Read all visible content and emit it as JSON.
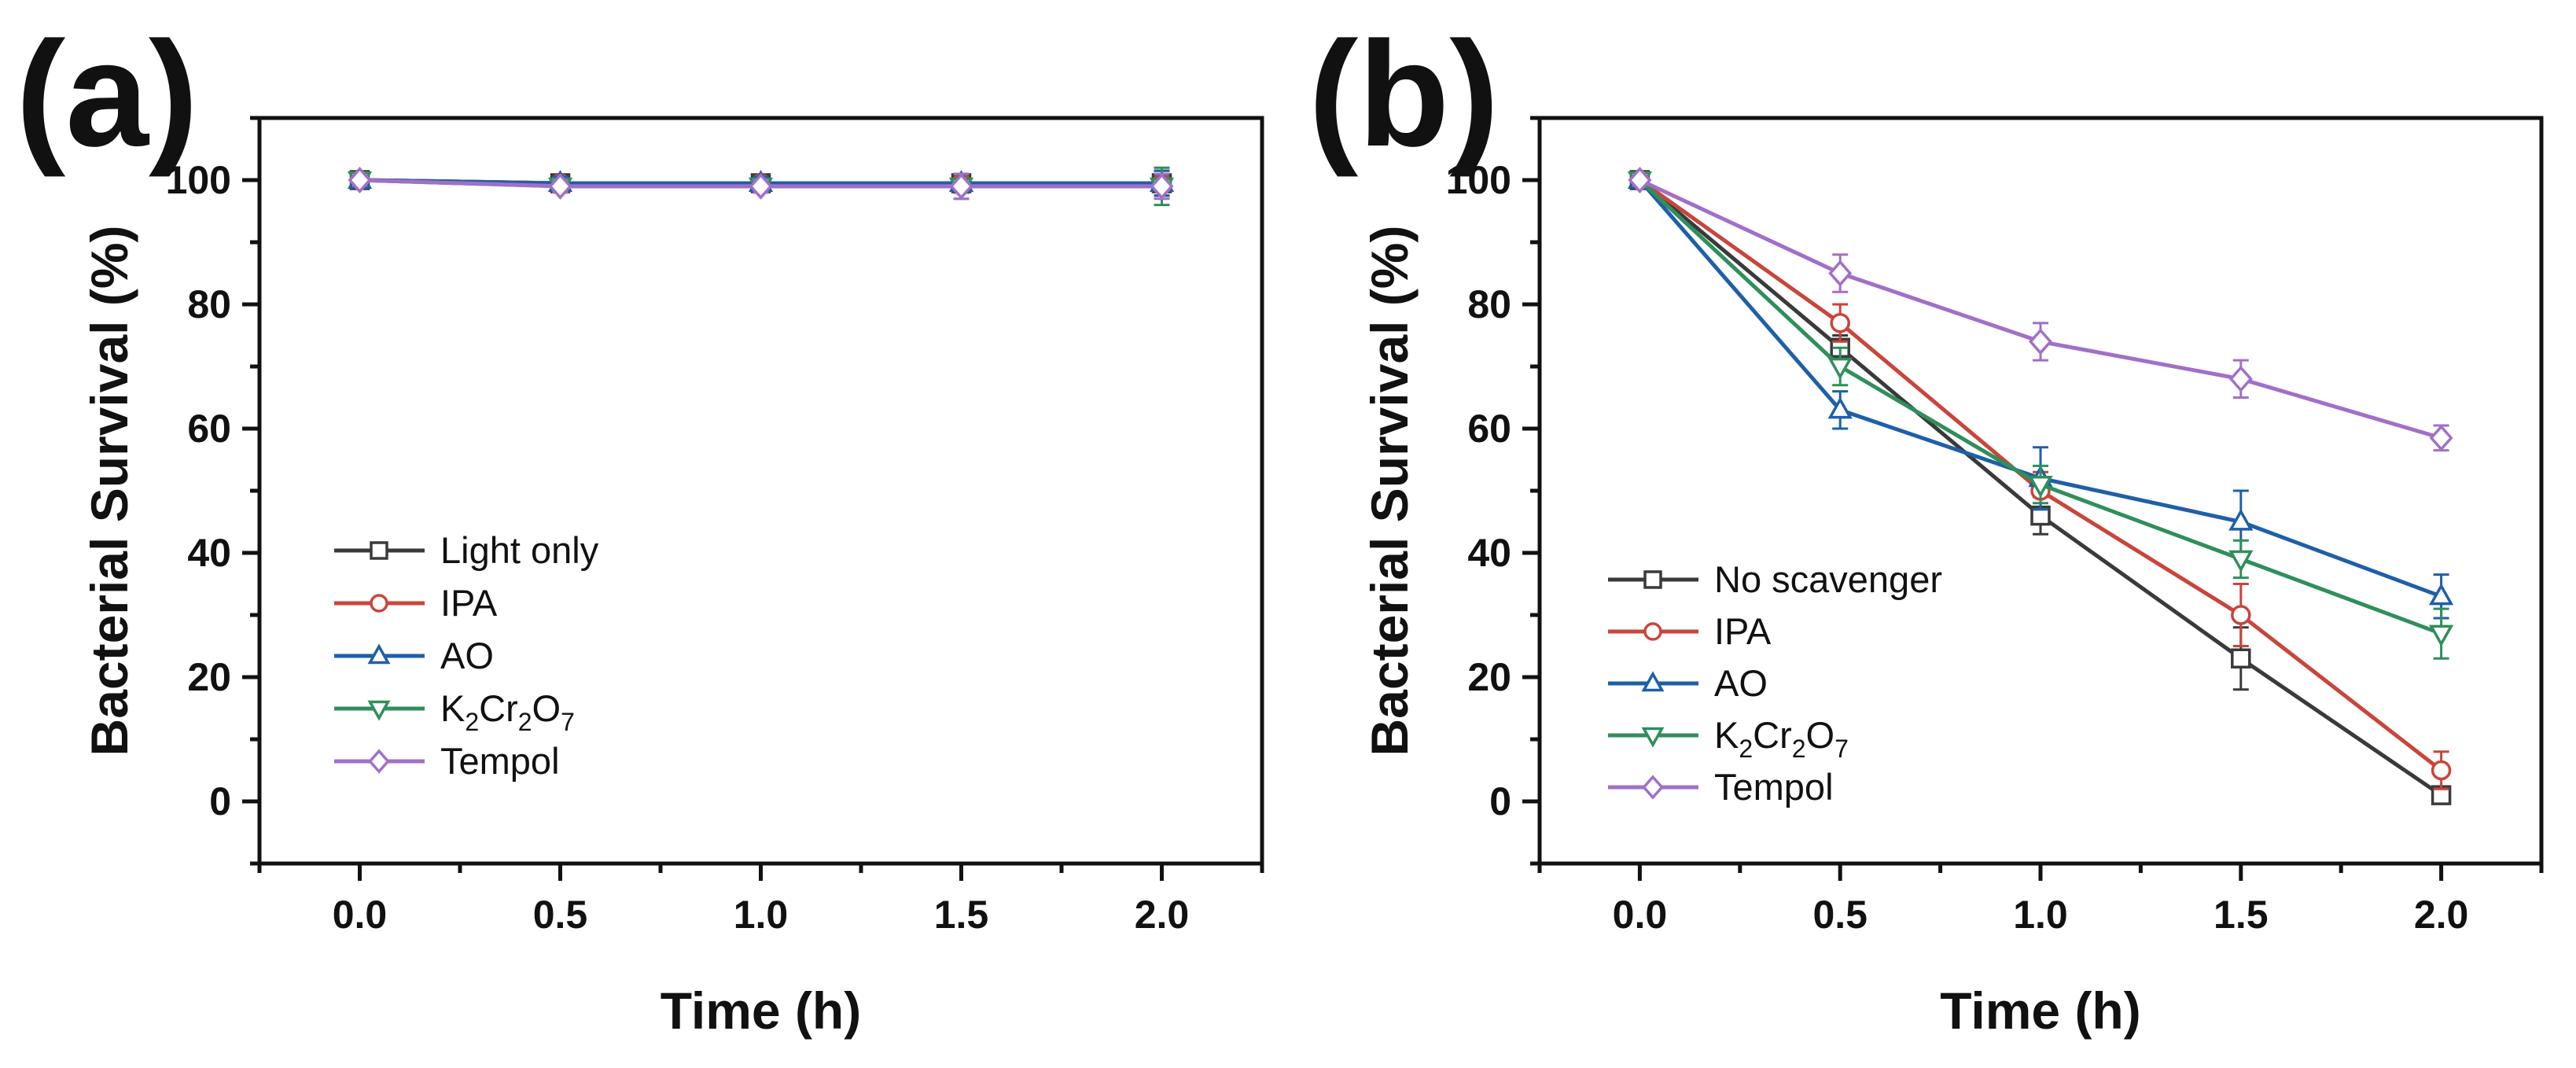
{
  "chart_data": [
    {
      "type": "line",
      "panel_label": "(a)",
      "xlabel": "Time (h)",
      "ylabel": "Bacterial Survival (%)",
      "xlim": [
        -0.25,
        2.25
      ],
      "ylim": [
        -10,
        110
      ],
      "xticks": [
        0.0,
        0.5,
        1.0,
        1.5,
        2.0
      ],
      "xtick_labels": [
        "0.0",
        "0.5",
        "1.0",
        "1.5",
        "2.0"
      ],
      "yticks": [
        0,
        20,
        40,
        60,
        80,
        100
      ],
      "ytick_labels": [
        "0",
        "20",
        "40",
        "60",
        "80",
        "100"
      ],
      "x": [
        0.0,
        0.5,
        1.0,
        1.5,
        2.0
      ],
      "legend_position": "lower-left",
      "series": [
        {
          "name": "Light only",
          "label_parts": [
            "Light only"
          ],
          "color": "#3a3a3a",
          "marker": "square",
          "values": [
            100,
            99.5,
            99.5,
            99.5,
            99.5
          ],
          "errors": [
            0,
            1,
            1,
            1.5,
            2
          ]
        },
        {
          "name": "IPA",
          "label_parts": [
            "IPA"
          ],
          "color": "#c9453b",
          "marker": "circle",
          "values": [
            100,
            99.5,
            99.5,
            99.5,
            99.5
          ],
          "errors": [
            0,
            1,
            1,
            1.5,
            2
          ]
        },
        {
          "name": "AO",
          "label_parts": [
            "AO"
          ],
          "color": "#1f5fa8",
          "marker": "triangle-up",
          "values": [
            100,
            99.5,
            99.5,
            99.5,
            99.5
          ],
          "errors": [
            0,
            1,
            1,
            1.5,
            2
          ]
        },
        {
          "name": "K2Cr2O7",
          "label_parts": [
            "K",
            "2",
            "Cr",
            "2",
            "O",
            "7"
          ],
          "color": "#2f8f5b",
          "marker": "triangle-down",
          "values": [
            100,
            99,
            99,
            99,
            99
          ],
          "errors": [
            0,
            1,
            1,
            2,
            3
          ]
        },
        {
          "name": "Tempol",
          "label_parts": [
            "Tempol"
          ],
          "color": "#a070c8",
          "marker": "diamond",
          "values": [
            100,
            99,
            99,
            99,
            99
          ],
          "errors": [
            0,
            1,
            1,
            2,
            2
          ]
        }
      ]
    },
    {
      "type": "line",
      "panel_label": "(b)",
      "xlabel": "Time (h)",
      "ylabel": "Bacterial Survival (%)",
      "xlim": [
        -0.25,
        2.25
      ],
      "ylim": [
        -10,
        110
      ],
      "xticks": [
        0.0,
        0.5,
        1.0,
        1.5,
        2.0
      ],
      "xtick_labels": [
        "0.0",
        "0.5",
        "1.0",
        "1.5",
        "2.0"
      ],
      "yticks": [
        0,
        20,
        40,
        60,
        80,
        100
      ],
      "ytick_labels": [
        "0",
        "20",
        "40",
        "60",
        "80",
        "100"
      ],
      "x": [
        0.0,
        0.5,
        1.0,
        1.5,
        2.0
      ],
      "legend_position": "lower-left",
      "series": [
        {
          "name": "No scavenger",
          "label_parts": [
            "No scavenger"
          ],
          "color": "#3a3a3a",
          "marker": "square",
          "values": [
            100,
            73,
            46,
            23,
            1
          ],
          "errors": [
            0,
            2,
            3,
            5,
            0.5
          ]
        },
        {
          "name": "IPA",
          "label_parts": [
            "IPA"
          ],
          "color": "#c9453b",
          "marker": "circle",
          "values": [
            100,
            77,
            50,
            30,
            5
          ],
          "errors": [
            0,
            3,
            3,
            5,
            3
          ]
        },
        {
          "name": "AO",
          "label_parts": [
            "AO"
          ],
          "color": "#1f5fa8",
          "marker": "triangle-up",
          "values": [
            100,
            63,
            52,
            45,
            33
          ],
          "errors": [
            0,
            3,
            5,
            5,
            3.5
          ]
        },
        {
          "name": "K2Cr2O7",
          "label_parts": [
            "K",
            "2",
            "Cr",
            "2",
            "O",
            "7"
          ],
          "color": "#2f8f5b",
          "marker": "triangle-down",
          "values": [
            100,
            70,
            51,
            39,
            27
          ],
          "errors": [
            0,
            3,
            3,
            3,
            4
          ]
        },
        {
          "name": "Tempol",
          "label_parts": [
            "Tempol"
          ],
          "color": "#a070c8",
          "marker": "diamond",
          "values": [
            100,
            85,
            74,
            68,
            58.5
          ],
          "errors": [
            0,
            3,
            3,
            3,
            2
          ]
        }
      ]
    }
  ]
}
